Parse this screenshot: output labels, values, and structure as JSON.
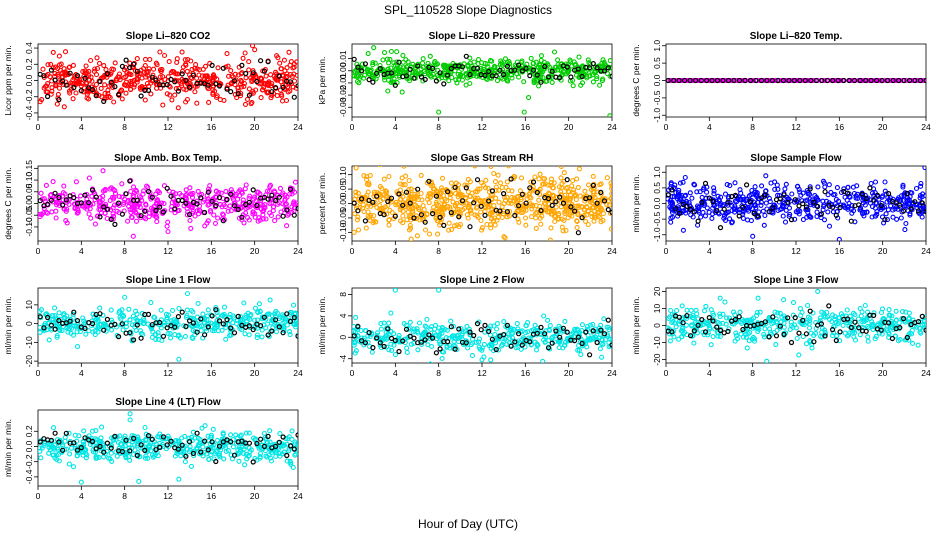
{
  "figure": {
    "title": "SPL_110528  Slope Diagnostics",
    "xlabel": "Hour of Day (UTC)"
  },
  "chart_data": [
    {
      "type": "scatter",
      "title": "Slope Li–820 CO2",
      "ylabel": "Licor ppm per min.",
      "xlim": [
        0,
        24
      ],
      "ylim": [
        -0.45,
        0.45
      ],
      "yticks": [
        -0.4,
        -0.2,
        0.0,
        0.2,
        0.4
      ],
      "ytick_labels": [
        "-0.4",
        "-0.2",
        "0.0",
        "0.2",
        "0.4"
      ],
      "xticks": [
        0,
        4,
        8,
        12,
        16,
        20,
        24
      ],
      "color": "#ff0000",
      "n_points": 520,
      "spread": 0.13,
      "outliers": [
        [
          19.8,
          0.43
        ],
        [
          20.0,
          0.38
        ],
        [
          13.3,
          0.35
        ]
      ]
    },
    {
      "type": "scatter",
      "title": "Slope Li–820 Pressure",
      "ylabel": "kPa per min.",
      "xlim": [
        0,
        24
      ],
      "ylim": [
        -0.038,
        0.022
      ],
      "yticks": [
        -0.03,
        -0.02,
        -0.01,
        0.0,
        0.01
      ],
      "ytick_labels": [
        "-0.03",
        "-0.02",
        "-0.01",
        "0.00",
        "0.01"
      ],
      "xticks": [
        0,
        4,
        8,
        12,
        16,
        20,
        24
      ],
      "color": "#00cc00",
      "n_points": 520,
      "spread": 0.005,
      "outliers": [
        [
          2.0,
          0.019
        ],
        [
          3.0,
          0.015
        ],
        [
          8.0,
          -0.034
        ],
        [
          15.9,
          -0.034
        ],
        [
          23.8,
          -0.037
        ],
        [
          16.3,
          -0.022
        ]
      ]
    },
    {
      "type": "scatter",
      "title": "Slope Li–820 Temp.",
      "ylabel": "degrees C per min.",
      "xlim": [
        0,
        24
      ],
      "ylim": [
        -1.05,
        1.05
      ],
      "yticks": [
        -1.0,
        -0.5,
        0.0,
        0.5,
        1.0
      ],
      "ytick_labels": [
        "-1.0",
        "-0.5",
        "0.0",
        "0.5",
        "1.0"
      ],
      "xticks": [
        0,
        4,
        8,
        12,
        16,
        20,
        24
      ],
      "color": "#ff00ff",
      "n_points": 300,
      "spread": 0.0,
      "outliers": []
    },
    {
      "type": "scatter",
      "title": "Slope Amb. Box Temp.",
      "ylabel": "degrees C per min.",
      "xlim": [
        0,
        24
      ],
      "ylim": [
        -0.16,
        0.16
      ],
      "yticks": [
        -0.1,
        -0.05,
        0.0,
        0.05,
        0.1,
        0.15
      ],
      "ytick_labels": [
        "-0.10",
        "-0.05",
        "0.00",
        "0.05",
        "0.10",
        "0.15"
      ],
      "xticks": [
        0,
        4,
        8,
        12,
        16,
        20,
        24
      ],
      "color": "#ff00ff",
      "n_points": 480,
      "spread": 0.04,
      "outliers": [
        [
          8.8,
          -0.14
        ],
        [
          12.0,
          -0.12
        ],
        [
          6.0,
          0.14
        ]
      ]
    },
    {
      "type": "scatter",
      "title": "Slope Gas Stream RH",
      "ylabel": "percent per min.",
      "xlim": [
        0,
        24
      ],
      "ylim": [
        -0.13,
        0.13
      ],
      "yticks": [
        -0.1,
        -0.05,
        0.0,
        0.05,
        0.1
      ],
      "ytick_labels": [
        "-0.10",
        "-0.05",
        "0.00",
        "0.05",
        "0.10"
      ],
      "xticks": [
        0,
        4,
        8,
        12,
        16,
        20,
        24
      ],
      "color": "#ffa500",
      "n_points": 700,
      "spread": 0.045,
      "outliers": [
        [
          21.0,
          0.12
        ],
        [
          0.2,
          -0.1
        ]
      ]
    },
    {
      "type": "scatter",
      "title": "Slope Sample Flow",
      "ylabel": "ml/min per min.",
      "xlim": [
        0,
        24
      ],
      "ylim": [
        -1.2,
        1.2
      ],
      "yticks": [
        -1.0,
        -0.5,
        0.0,
        0.5,
        1.0
      ],
      "ytick_labels": [
        "-1.0",
        "-0.5",
        "0.0",
        "0.5",
        "1.0"
      ],
      "xticks": [
        0,
        4,
        8,
        12,
        16,
        20,
        24
      ],
      "color": "#0000ff",
      "n_points": 520,
      "spread": 0.3,
      "outliers": [
        [
          8.0,
          -1.05
        ],
        [
          16.0,
          -1.15
        ],
        [
          23.9,
          1.15
        ]
      ]
    },
    {
      "type": "scatter",
      "title": "Slope Line 1 Flow",
      "ylabel": "ml/min per min.",
      "xlim": [
        0,
        24
      ],
      "ylim": [
        -21,
        19
      ],
      "yticks": [
        -20,
        -10,
        0,
        10
      ],
      "ytick_labels": [
        "-20",
        "-10",
        "0",
        "10"
      ],
      "xticks": [
        0,
        4,
        8,
        12,
        16,
        20,
        24
      ],
      "color": "#00e5e5",
      "n_points": 420,
      "spread": 4,
      "outliers": [
        [
          8.0,
          14
        ],
        [
          13.8,
          16
        ],
        [
          13.0,
          -19
        ],
        [
          19.0,
          11
        ]
      ]
    },
    {
      "type": "scatter",
      "title": "Slope Line 2 Flow",
      "ylabel": "ml/min per min.",
      "xlim": [
        0,
        24
      ],
      "ylim": [
        -4.8,
        9.2
      ],
      "yticks": [
        -4,
        0,
        4,
        8
      ],
      "ytick_labels": [
        "-4",
        "0",
        "4",
        "8"
      ],
      "xticks": [
        0,
        4,
        8,
        12,
        16,
        20,
        24
      ],
      "color": "#00e5e5",
      "n_points": 420,
      "spread": 1.4,
      "outliers": [
        [
          4.0,
          8.8
        ],
        [
          8.0,
          8.8
        ],
        [
          12.0,
          -4.2
        ],
        [
          17.6,
          -4.5
        ]
      ]
    },
    {
      "type": "scatter",
      "title": "Slope Line 3 Flow",
      "ylabel": "ml/min per min.",
      "xlim": [
        0,
        24
      ],
      "ylim": [
        -22,
        22
      ],
      "yticks": [
        -20,
        -10,
        0,
        10,
        20
      ],
      "ytick_labels": [
        "-20",
        "-10",
        "0",
        "10",
        "20"
      ],
      "xticks": [
        0,
        4,
        8,
        12,
        16,
        20,
        24
      ],
      "color": "#00e5e5",
      "n_points": 420,
      "spread": 5,
      "outliers": [
        [
          5.0,
          16
        ],
        [
          8.5,
          16
        ],
        [
          9.3,
          -21
        ],
        [
          14.0,
          20
        ]
      ]
    },
    {
      "type": "scatter",
      "title": "Slope Line 4 (LT) Flow",
      "ylabel": "ml/min per min.",
      "xlim": [
        0,
        24
      ],
      "ylim": [
        -0.52,
        0.48
      ],
      "yticks": [
        -0.4,
        -0.2,
        0.0,
        0.2
      ],
      "ytick_labels": [
        "-0.4",
        "-0.2",
        "0.0",
        "0.2"
      ],
      "xticks": [
        0,
        4,
        8,
        12,
        16,
        20,
        24
      ],
      "color": "#00e5e5",
      "n_points": 480,
      "spread": 0.1,
      "outliers": [
        [
          4.0,
          -0.47
        ],
        [
          8.5,
          0.43
        ],
        [
          9.3,
          -0.46
        ],
        [
          13.0,
          -0.43
        ],
        [
          8.5,
          0.35
        ]
      ]
    }
  ]
}
